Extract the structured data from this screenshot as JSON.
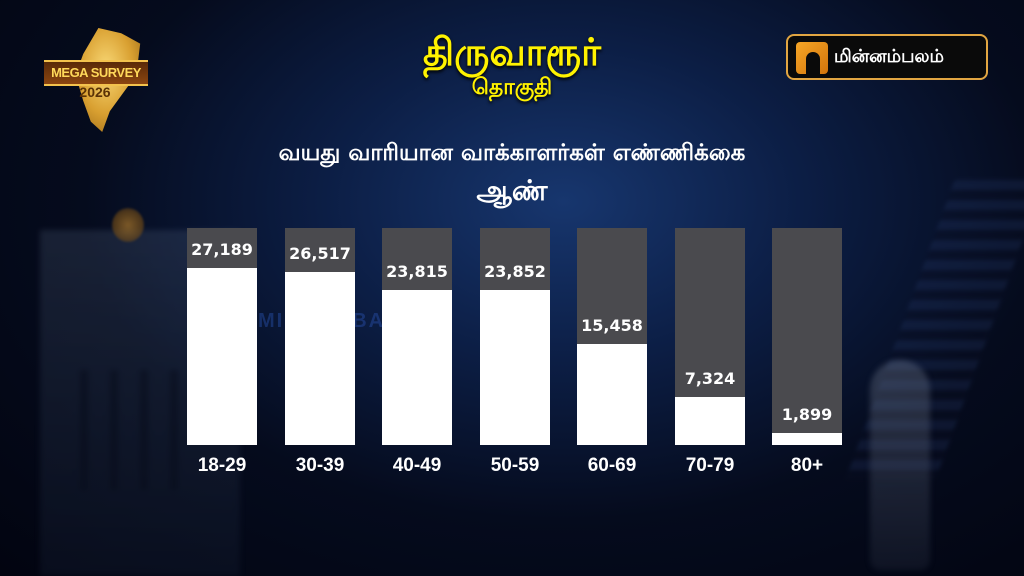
{
  "header": {
    "survey_logo": {
      "line1": "MEGA SURVEY",
      "line2": "2026"
    },
    "constituency": "திருவாரூர்",
    "constituency_sub": "தொகுதி",
    "brand": "மின்னம்பலம்"
  },
  "watermark": "MINNAMBALAM",
  "colors": {
    "title": "#fff200",
    "bar_fill": "#ffffff",
    "bar_track": "#4a4a4e",
    "brand_border": "#e2a642",
    "background": "#0c1e45"
  },
  "chart_data": {
    "type": "bar",
    "title": "வயது வாரியான வாக்காளர்கள் எண்ணிக்கை",
    "subtitle": "ஆண்",
    "xlabel": "",
    "ylabel": "",
    "categories": [
      "18-29",
      "30-39",
      "40-49",
      "50-59",
      "60-69",
      "70-79",
      "80+"
    ],
    "values": [
      27189,
      26517,
      23815,
      23852,
      15458,
      7324,
      1899
    ],
    "value_labels": [
      "27,189",
      "26,517",
      "23,815",
      "23,852",
      "15,458",
      "7,324",
      "1,899"
    ],
    "ylim": [
      0,
      30000
    ],
    "grid": false,
    "legend": "none"
  }
}
